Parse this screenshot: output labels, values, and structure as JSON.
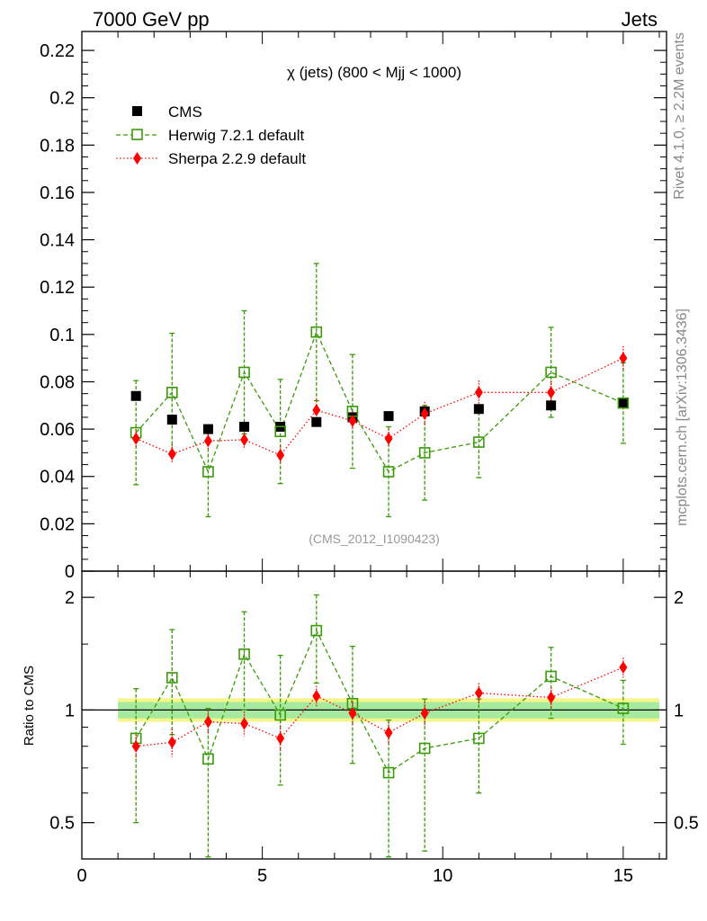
{
  "header": {
    "left": "7000 GeV pp",
    "right": "Jets"
  },
  "side": {
    "rivet": "Rivet 4.1.0, ≥ 2.2M events",
    "mcplots": "mcplots.cern.ch [arXiv:1306.3436]"
  },
  "colors": {
    "cms": "#000000",
    "herwig": "#3a9a0a",
    "sherpa": "#ff0000",
    "band_outer": "#f5f58a",
    "band_inner": "#a6eaa0"
  },
  "chart_data": [
    {
      "type": "scatter",
      "panel": "main",
      "title": "χ (jets) (800 < Mjj < 1000)",
      "watermark": "(CMS_2012_I1090423)",
      "xlim": [
        0,
        16.2
      ],
      "ylim": [
        0,
        0.228
      ],
      "yticks": [
        0,
        0.02,
        0.04,
        0.06,
        0.08,
        0.1,
        0.12,
        0.14,
        0.16,
        0.18,
        0.2,
        0.22
      ],
      "ytick_labels": [
        "0",
        "0.02",
        "0.04",
        "0.06",
        "0.08",
        "0.1",
        "0.12",
        "0.14",
        "0.16",
        "0.18",
        "0.2",
        "0.22"
      ],
      "legend": {
        "placement": "top-left",
        "entries": [
          "CMS",
          "Herwig 7.2.1 default",
          "Sherpa 2.2.9 default"
        ]
      },
      "series": [
        {
          "name": "CMS",
          "x": [
            1.5,
            2.5,
            3.5,
            4.5,
            5.5,
            6.5,
            7.5,
            8.5,
            9.5,
            11,
            13,
            15
          ],
          "y": [
            0.074,
            0.064,
            0.06,
            0.061,
            0.061,
            0.063,
            0.065,
            0.0655,
            0.0675,
            0.0685,
            0.07,
            0.071
          ],
          "err": [
            0.002,
            0.002,
            0.002,
            0.002,
            0.002,
            0.002,
            0.002,
            0.002,
            0.002,
            0.002,
            0.002,
            0.002
          ]
        },
        {
          "name": "Herwig 7.2.1 default",
          "x": [
            1.5,
            2.5,
            3.5,
            4.5,
            5.5,
            6.5,
            7.5,
            8.5,
            9.5,
            11,
            13,
            15
          ],
          "y": [
            0.0585,
            0.0755,
            0.042,
            0.084,
            0.059,
            0.101,
            0.0675,
            0.042,
            0.05,
            0.0545,
            0.084,
            0.071
          ],
          "err": [
            0.022,
            0.025,
            0.019,
            0.026,
            0.022,
            0.029,
            0.024,
            0.019,
            0.02,
            0.015,
            0.019,
            0.017
          ]
        },
        {
          "name": "Sherpa 2.2.9 default",
          "x": [
            1.5,
            2.5,
            3.5,
            4.5,
            5.5,
            6.5,
            7.5,
            8.5,
            9.5,
            11,
            13,
            15
          ],
          "y": [
            0.056,
            0.0495,
            0.055,
            0.0555,
            0.049,
            0.068,
            0.0635,
            0.056,
            0.0665,
            0.0755,
            0.0755,
            0.09
          ],
          "err": [
            0.004,
            0.004,
            0.004,
            0.004,
            0.004,
            0.005,
            0.004,
            0.004,
            0.005,
            0.005,
            0.005,
            0.005
          ]
        }
      ]
    },
    {
      "type": "scatter",
      "panel": "ratio",
      "ylabel": "Ratio to CMS",
      "xlim": [
        0,
        16.2
      ],
      "ylim": [
        0.4,
        2.35
      ],
      "ylog": true,
      "xticks": [
        0,
        5,
        10,
        15
      ],
      "xtick_labels": [
        "0",
        "5",
        "10",
        "15"
      ],
      "yticks": [
        0.5,
        1,
        2
      ],
      "ytick_labels": [
        "0.5",
        "1",
        "2"
      ],
      "band": {
        "inner": [
          0.95,
          1.05
        ],
        "outer": [
          0.93,
          1.075
        ],
        "xrange": [
          1,
          16
        ]
      },
      "series": [
        {
          "name": "Herwig 7.2.1 default",
          "x": [
            1.5,
            2.5,
            3.5,
            4.5,
            5.5,
            6.5,
            7.5,
            8.5,
            9.5,
            11,
            13,
            15
          ],
          "y": [
            0.84,
            1.22,
            0.74,
            1.41,
            0.97,
            1.63,
            1.04,
            0.68,
            0.79,
            0.84,
            1.23,
            1.01
          ],
          "err_lo": [
            0.34,
            0.36,
            0.4,
            0.41,
            0.34,
            0.45,
            0.32,
            0.33,
            0.37,
            0.24,
            0.28,
            0.2
          ],
          "err_hi": [
            0.3,
            0.42,
            0.27,
            0.42,
            0.43,
            0.4,
            0.44,
            0.26,
            0.28,
            0.23,
            0.24,
            0.19
          ]
        },
        {
          "name": "Sherpa 2.2.9 default",
          "x": [
            1.5,
            2.5,
            3.5,
            4.5,
            5.5,
            6.5,
            7.5,
            8.5,
            9.5,
            11,
            13,
            15
          ],
          "y": [
            0.8,
            0.82,
            0.93,
            0.92,
            0.84,
            1.09,
            0.98,
            0.87,
            0.98,
            1.11,
            1.08,
            1.3
          ],
          "err": [
            0.06,
            0.07,
            0.07,
            0.07,
            0.07,
            0.07,
            0.07,
            0.06,
            0.07,
            0.07,
            0.07,
            0.08
          ]
        }
      ]
    }
  ]
}
